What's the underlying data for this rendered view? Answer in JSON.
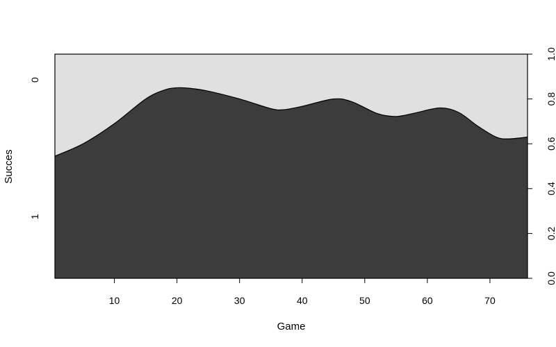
{
  "chart_data": {
    "type": "area",
    "subtype": "conditional-density",
    "xlabel": "Game",
    "ylabel": "Succes",
    "xlim": [
      0.5,
      76
    ],
    "ylim": [
      0,
      1
    ],
    "x_ticks": [
      10,
      20,
      30,
      40,
      50,
      60,
      70
    ],
    "y_right_ticks": [
      "0.0",
      "0.2",
      "0.4",
      "0.6",
      "0.8",
      "1.0"
    ],
    "category_labels": [
      "0",
      "1"
    ],
    "boundary": {
      "x": [
        0.5,
        5,
        10,
        15,
        18,
        20,
        22,
        25,
        30,
        35,
        37,
        40,
        45,
        48,
        52,
        55,
        58,
        62,
        65,
        68,
        71,
        73,
        76
      ],
      "y": [
        0.545,
        0.6,
        0.69,
        0.8,
        0.84,
        0.85,
        0.848,
        0.835,
        0.8,
        0.757,
        0.752,
        0.767,
        0.8,
        0.787,
        0.735,
        0.722,
        0.737,
        0.76,
        0.74,
        0.68,
        0.63,
        0.622,
        0.63
      ]
    },
    "series": [
      {
        "name": "1",
        "color": "#3c3c3c"
      },
      {
        "name": "0",
        "color": "#e0e0e0"
      }
    ],
    "grid": false,
    "legend": "none"
  }
}
